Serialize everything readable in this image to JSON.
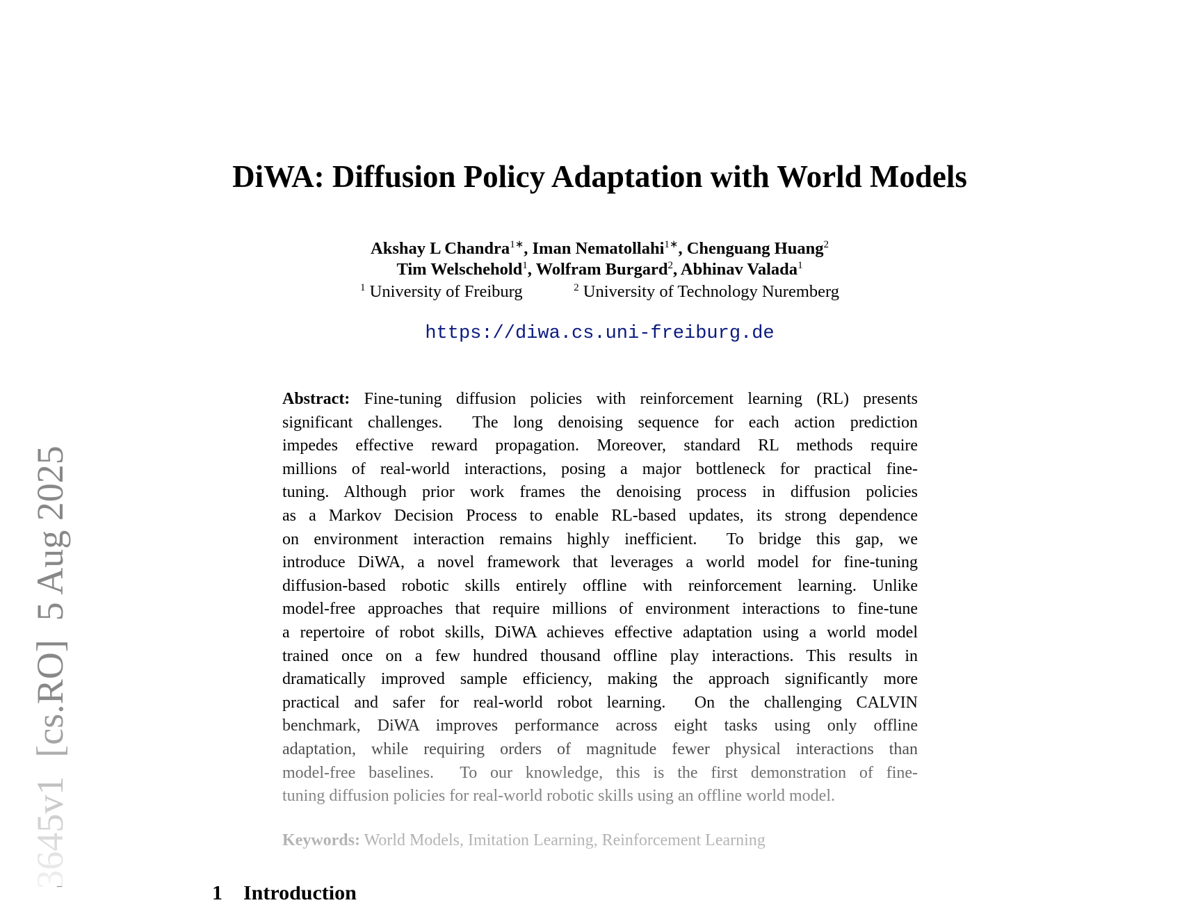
{
  "header": {
    "title": "DiWA: Diffusion Policy Adaptation with World Models",
    "author_lines": [
      [
        {
          "name": "Akshay L Chandra",
          "sup": "1∗"
        },
        {
          "name": "Iman Nematollahi",
          "sup": "1∗"
        },
        {
          "name": "Chenguang Huang",
          "sup": "2"
        }
      ],
      [
        {
          "name": "Tim Welschehold",
          "sup": "1"
        },
        {
          "name": "Wolfram Burgard",
          "sup": "2"
        },
        {
          "name": "Abhinav Valada",
          "sup": "1"
        }
      ]
    ],
    "affiliations": [
      {
        "sup": "1",
        "name": "University of Freiburg"
      },
      {
        "sup": "2",
        "name": "University of Technology Nuremberg"
      }
    ],
    "url": "https://diwa.cs.uni-freiburg.de"
  },
  "abstract": {
    "label": "Abstract:",
    "lines": [
      "Fine-tuning diffusion policies with reinforcement learning (RL) presents",
      "significant challenges.  The long denoising sequence for each action prediction",
      "impedes effective reward propagation. Moreover, standard RL methods require",
      "millions of real-world interactions, posing a major bottleneck for practical fine-",
      "tuning. Although prior work frames the denoising process in diffusion policies",
      "as a Markov Decision Process to enable RL-based updates, its strong dependence",
      "on environment interaction remains highly inefficient.  To bridge this gap, we",
      "introduce DiWA, a novel framework that leverages a world model for fine-tuning",
      "diffusion-based robotic skills entirely offline with reinforcement learning. Unlike",
      "model-free approaches that require millions of environment interactions to fine-tune",
      "a repertoire of robot skills, DiWA achieves effective adaptation using a world model",
      "trained once on a few hundred thousand offline play interactions. This results in",
      "dramatically improved sample efficiency, making the approach significantly more",
      "practical and safer for real-world robot learning.  On the challenging CALVIN",
      "benchmark, DiWA improves performance across eight tasks using only offline",
      "adaptation, while requiring orders of magnitude fewer physical interactions than",
      "model-free baselines.  To our knowledge, this is the first demonstration of fine-",
      "tuning diffusion policies for real-world robotic skills using an offline world model."
    ]
  },
  "keywords": {
    "label": "Keywords:",
    "text": "World Models, Imitation Learning, Reinforcement Learning"
  },
  "section": {
    "number": "1",
    "title": "Introduction"
  },
  "stamp": "3645v1  [cs.RO]  5 Aug 2025"
}
